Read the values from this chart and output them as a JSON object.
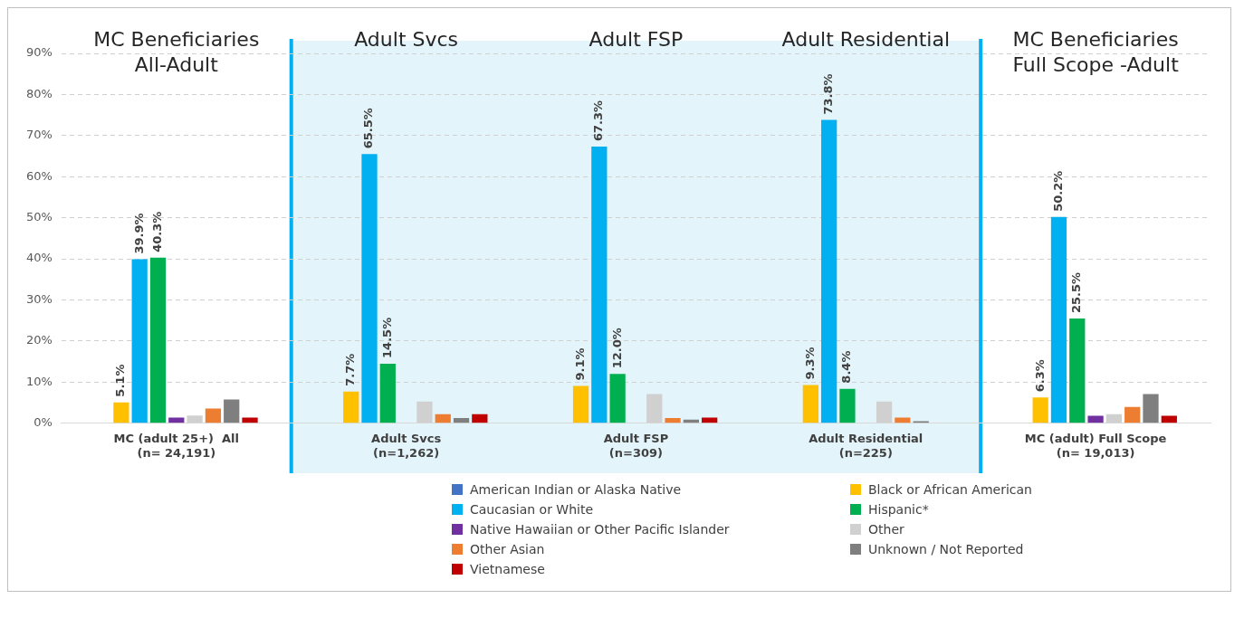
{
  "chart_data": {
    "type": "bar",
    "categories": [
      "MC (adult 25+)  All\n(n= 24,191)",
      "Adult Svcs\n(n=1,262)",
      "Adult FSP\n(n=309)",
      "Adult Residential\n(n=225)",
      "MC (adult) Full Scope\n(n= 19,013)"
    ],
    "series": [
      {
        "name": "American Indian or Alaska Native",
        "color": "#4472c4",
        "values": [
          0,
          0,
          0,
          0,
          0
        ]
      },
      {
        "name": "Black or African American",
        "color": "#ffc000",
        "values": [
          5.1,
          7.7,
          9.1,
          9.3,
          6.3
        ],
        "value_labels": [
          "5.1%",
          "7.7%",
          "9.1%",
          "9.3%",
          "6.3%"
        ]
      },
      {
        "name": "Caucasian or White",
        "color": "#00b0f0",
        "values": [
          39.9,
          65.5,
          67.3,
          73.8,
          50.2
        ],
        "value_labels": [
          "39.9%",
          "65.5%",
          "67.3%",
          "73.8%",
          "50.2%"
        ]
      },
      {
        "name": "Hispanic*",
        "color": "#00b050",
        "values": [
          40.3,
          14.5,
          12.0,
          8.4,
          25.5
        ],
        "value_labels": [
          "40.3%",
          "14.5%",
          "12.0%",
          "8.4%",
          "25.5%"
        ]
      },
      {
        "name": "Native Hawaiian or Other Pacific Islander",
        "color": "#7030a0",
        "values": [
          1.4,
          0,
          0,
          0,
          1.8
        ]
      },
      {
        "name": "Other",
        "color": "#d0d0d0",
        "values": [
          1.9,
          5.3,
          7.1,
          5.3,
          2.2
        ]
      },
      {
        "name": "Other Asian",
        "color": "#ed7d31",
        "values": [
          3.6,
          2.2,
          1.3,
          1.4,
          4.0
        ]
      },
      {
        "name": "Unknown / Not Reported",
        "color": "#7f7f7f",
        "values": [
          5.8,
          1.3,
          0.9,
          0.5,
          7.1
        ]
      },
      {
        "name": "Vietnamese",
        "color": "#c00000",
        "values": [
          1.4,
          2.2,
          1.4,
          0,
          1.8
        ]
      }
    ],
    "ylim": [
      0,
      90
    ],
    "yticks": [
      {
        "value": 0,
        "label": "0%"
      },
      {
        "value": 10,
        "label": "10%"
      },
      {
        "value": 20,
        "label": "20%"
      },
      {
        "value": 30,
        "label": "30%"
      },
      {
        "value": 40,
        "label": "40%"
      },
      {
        "value": 50,
        "label": "50%"
      },
      {
        "value": 60,
        "label": "60%"
      },
      {
        "value": 70,
        "label": "70%"
      },
      {
        "value": 80,
        "label": "80%"
      },
      {
        "value": 90,
        "label": "90%"
      }
    ],
    "grid": "y",
    "legend": "bottom",
    "bands": [
      {
        "axis": "x",
        "from": "Adult Svcs\n(n=1,262)",
        "to": "Adult Residential\n(n=225)",
        "color": "#e3f4fb"
      }
    ],
    "annotations": [
      "MC Beneficiaries\nAll-Adult",
      "Adult Svcs",
      "Adult FSP",
      "Adult Residential",
      "MC Beneficiaries\nFull Scope -Adult"
    ]
  }
}
